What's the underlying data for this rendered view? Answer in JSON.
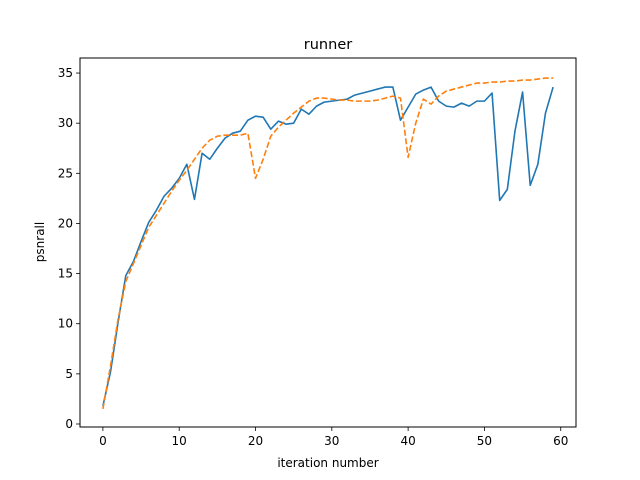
{
  "chart_data": {
    "type": "line",
    "title": "runner",
    "xlabel": "iteration number",
    "ylabel": "psnrall",
    "xlim": [
      -3,
      62
    ],
    "ylim": [
      -0.3,
      36.5
    ],
    "xticks": [
      0,
      10,
      20,
      30,
      40,
      50,
      60
    ],
    "yticks": [
      0,
      5,
      10,
      15,
      20,
      25,
      30,
      35
    ],
    "grid": false,
    "legend": "none",
    "series": [
      {
        "color": "#1f77b4",
        "style": "solid",
        "x": [
          0,
          1,
          2,
          3,
          4,
          5,
          6,
          7,
          8,
          9,
          10,
          11,
          12,
          13,
          14,
          15,
          16,
          17,
          18,
          19,
          20,
          21,
          22,
          23,
          24,
          25,
          26,
          27,
          28,
          29,
          30,
          31,
          32,
          33,
          34,
          35,
          36,
          37,
          38,
          39,
          40,
          41,
          42,
          43,
          44,
          45,
          46,
          47,
          48,
          49,
          50,
          51,
          52,
          53,
          54,
          55,
          56,
          57,
          58,
          59
        ],
        "values": [
          1.8,
          5.2,
          10.2,
          14.8,
          16.2,
          18.2,
          20.1,
          21.3,
          22.7,
          23.5,
          24.5,
          25.9,
          22.4,
          27.0,
          26.4,
          27.5,
          28.5,
          29.0,
          29.2,
          30.3,
          30.7,
          30.6,
          29.4,
          30.2,
          29.9,
          30.0,
          31.4,
          30.9,
          31.7,
          32.1,
          32.2,
          32.3,
          32.4,
          32.8,
          33.0,
          33.2,
          33.4,
          33.6,
          33.6,
          30.3,
          31.6,
          32.9,
          33.3,
          33.6,
          32.2,
          31.7,
          31.6,
          32.0,
          31.7,
          32.2,
          32.2,
          33.0,
          22.3,
          23.4,
          29.2,
          33.1,
          23.8,
          25.9,
          31.0,
          33.6
        ]
      },
      {
        "color": "#ff7f0e",
        "style": "dashed",
        "x": [
          0,
          1,
          2,
          3,
          4,
          5,
          6,
          7,
          8,
          9,
          10,
          11,
          12,
          13,
          14,
          15,
          16,
          17,
          18,
          19,
          20,
          21,
          22,
          23,
          24,
          25,
          26,
          27,
          28,
          29,
          30,
          31,
          32,
          33,
          34,
          35,
          36,
          37,
          38,
          39,
          40,
          41,
          42,
          43,
          44,
          45,
          46,
          47,
          48,
          49,
          50,
          51,
          52,
          53,
          54,
          55,
          56,
          57,
          58,
          59
        ],
        "values": [
          1.5,
          5.8,
          10.5,
          14.2,
          16.0,
          17.8,
          19.6,
          20.8,
          22.0,
          23.2,
          24.3,
          25.3,
          26.4,
          27.5,
          28.3,
          28.7,
          28.8,
          28.8,
          28.8,
          29.0,
          24.5,
          26.4,
          28.7,
          29.6,
          30.3,
          31.0,
          31.6,
          32.2,
          32.5,
          32.5,
          32.4,
          32.3,
          32.3,
          32.2,
          32.2,
          32.2,
          32.3,
          32.5,
          32.7,
          32.5,
          26.6,
          30.0,
          32.4,
          31.9,
          32.7,
          33.2,
          33.4,
          33.6,
          33.8,
          34.0,
          34.0,
          34.1,
          34.1,
          34.2,
          34.2,
          34.3,
          34.3,
          34.4,
          34.5,
          34.5
        ]
      }
    ]
  }
}
